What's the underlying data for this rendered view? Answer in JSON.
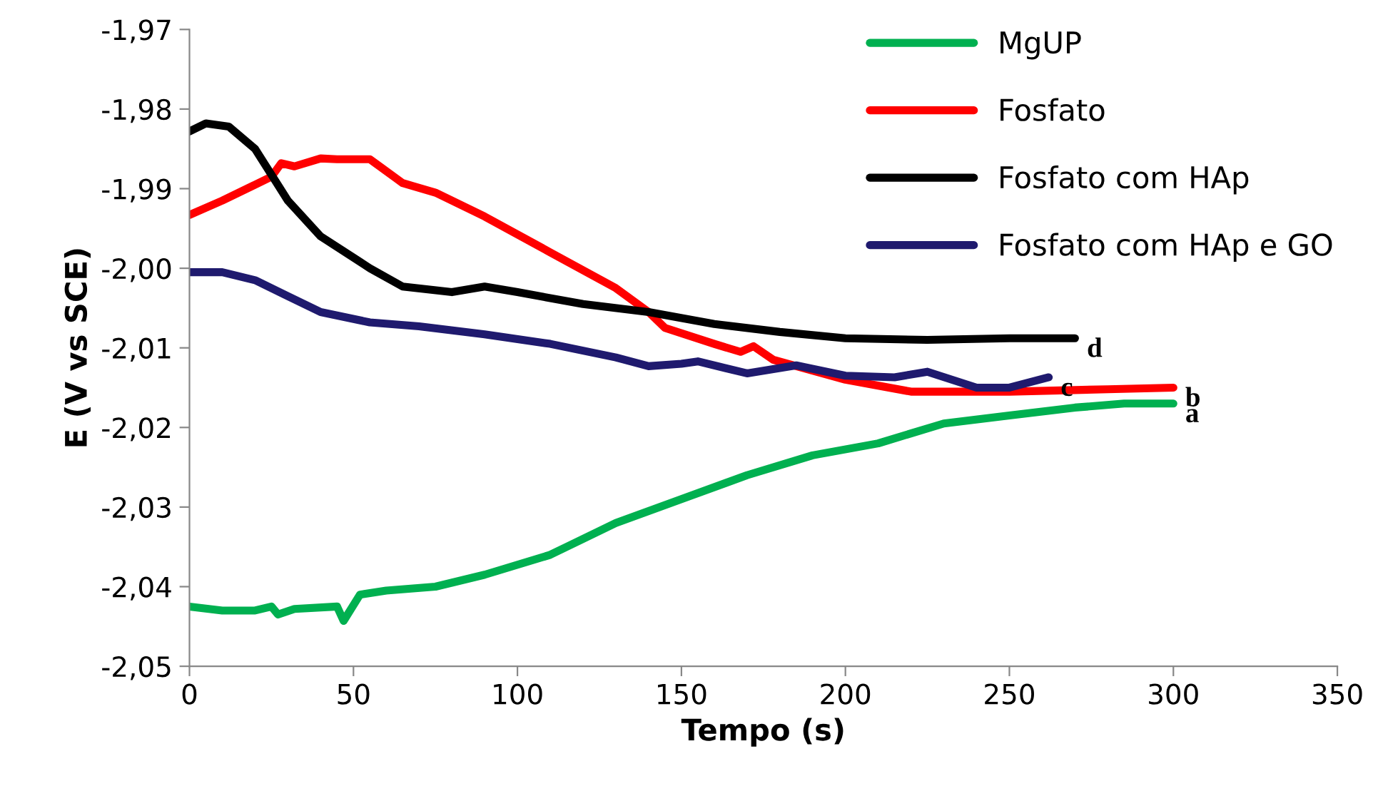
{
  "chart_data": {
    "type": "line",
    "xlabel": "Tempo (s)",
    "ylabel": "E (V vs SCE)",
    "xlim": [
      0,
      350
    ],
    "xticks": [
      0,
      50,
      100,
      150,
      200,
      250,
      300,
      350
    ],
    "ylim": [
      -2.05,
      -1.97
    ],
    "yticks": [
      {
        "value": -2.05,
        "label": "-2,05"
      },
      {
        "value": -2.04,
        "label": "-2,04"
      },
      {
        "value": -2.03,
        "label": "-2,03"
      },
      {
        "value": -2.02,
        "label": "-2,02"
      },
      {
        "value": -2.01,
        "label": "-2,01"
      },
      {
        "value": -2.0,
        "label": "-2,00"
      },
      {
        "value": -1.99,
        "label": "-1,99"
      },
      {
        "value": -1.98,
        "label": "-1,98"
      },
      {
        "value": -1.97,
        "label": "-1,97"
      }
    ],
    "grid": false,
    "legend": "top right",
    "marker": "none",
    "line_style": "solid",
    "series": [
      {
        "name": "MgUP",
        "color": "#00b050",
        "x": [
          0,
          10,
          20,
          25,
          27,
          32,
          45,
          47,
          52,
          60,
          75,
          90,
          110,
          130,
          150,
          170,
          190,
          210,
          230,
          250,
          270,
          285,
          300
        ],
        "values": [
          -2.0425,
          -2.043,
          -2.043,
          -2.0425,
          -2.0435,
          -2.0428,
          -2.0425,
          -2.0443,
          -2.041,
          -2.0405,
          -2.04,
          -2.0385,
          -2.036,
          -2.032,
          -2.029,
          -2.026,
          -2.0235,
          -2.022,
          -2.0195,
          -2.0185,
          -2.0175,
          -2.017,
          -2.017
        ]
      },
      {
        "name": "Fosfato",
        "color": "#ff0000",
        "x": [
          0,
          10,
          20,
          25,
          28,
          32,
          40,
          45,
          55,
          58,
          65,
          75,
          90,
          110,
          130,
          140,
          145,
          160,
          168,
          172,
          178,
          200,
          220,
          250,
          280,
          300
        ],
        "values": [
          -1.9933,
          -1.9915,
          -1.9895,
          -1.9885,
          -1.9868,
          -1.9872,
          -1.9862,
          -1.9863,
          -1.9863,
          -1.9872,
          -1.9893,
          -1.9905,
          -1.9935,
          -1.998,
          -2.0025,
          -2.0055,
          -2.0075,
          -2.0095,
          -2.0105,
          -2.0098,
          -2.0115,
          -2.014,
          -2.0155,
          -2.0155,
          -2.0152,
          -2.015
        ]
      },
      {
        "name": "Fosfato com HAp",
        "color": "#000000",
        "x": [
          0,
          5,
          12,
          20,
          30,
          40,
          55,
          65,
          80,
          90,
          100,
          120,
          140,
          160,
          180,
          200,
          225,
          250,
          270
        ],
        "values": [
          -1.9828,
          -1.9818,
          -1.9822,
          -1.985,
          -1.9915,
          -1.996,
          -2.0,
          -2.0023,
          -2.003,
          -2.0023,
          -2.003,
          -2.0045,
          -2.0055,
          -2.007,
          -2.008,
          -2.0088,
          -2.009,
          -2.0088,
          -2.0088
        ]
      },
      {
        "name": "Fosfato com HAp e GO",
        "color": "#1f1a6e",
        "x": [
          0,
          10,
          20,
          30,
          40,
          55,
          70,
          90,
          110,
          130,
          140,
          150,
          155,
          170,
          185,
          200,
          215,
          225,
          240,
          250,
          262
        ],
        "values": [
          -2.0005,
          -2.0005,
          -2.0015,
          -2.0035,
          -2.0055,
          -2.0068,
          -2.0073,
          -2.0083,
          -2.0095,
          -2.0112,
          -2.0123,
          -2.012,
          -2.0117,
          -2.0132,
          -2.0122,
          -2.0135,
          -2.0137,
          -2.013,
          -2.015,
          -2.015,
          -2.0137
        ]
      }
    ],
    "annotations": [
      {
        "text": "a",
        "x": 300,
        "y": -2.017
      },
      {
        "text": "b",
        "x": 300,
        "y": -2.015
      },
      {
        "text": "c",
        "x": 262,
        "y": -2.0137
      },
      {
        "text": "d",
        "x": 270,
        "y": -2.0088
      }
    ]
  }
}
